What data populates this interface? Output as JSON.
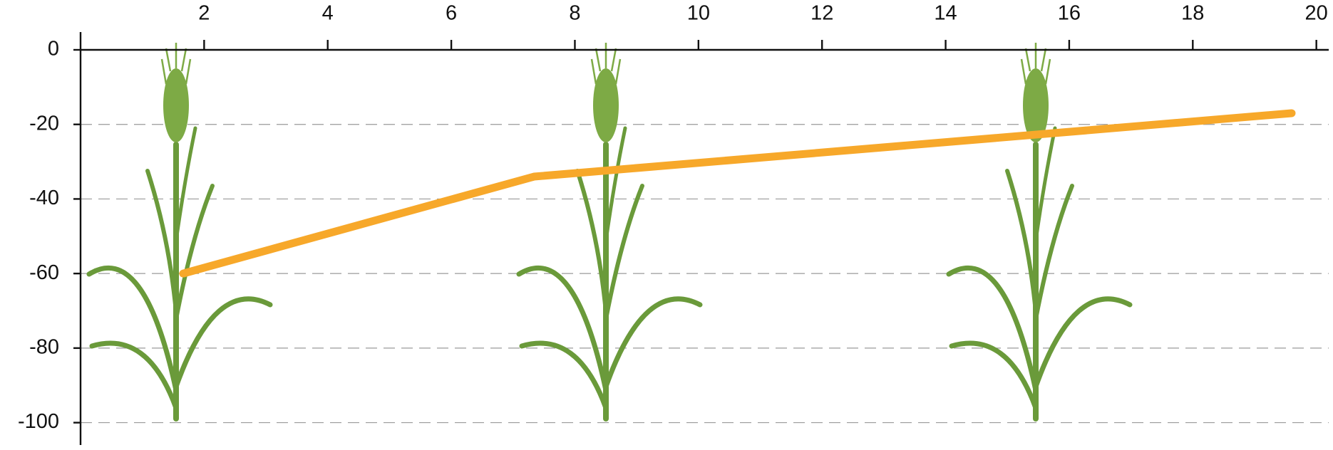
{
  "chart_data": {
    "type": "line",
    "x": [
      1.66,
      7.34,
      19.6
    ],
    "series": [
      {
        "color": "#f7a82a",
        "values": [
          -60,
          -34,
          -17
        ]
      }
    ],
    "xlim": [
      0,
      20.2
    ],
    "xticks": [
      2,
      4,
      6,
      8,
      10,
      12,
      14,
      16,
      18,
      20
    ],
    "ylim": [
      -106,
      0
    ],
    "yticks": [
      0,
      -20,
      -40,
      -60,
      -80,
      -100
    ],
    "grid": true
  }
}
